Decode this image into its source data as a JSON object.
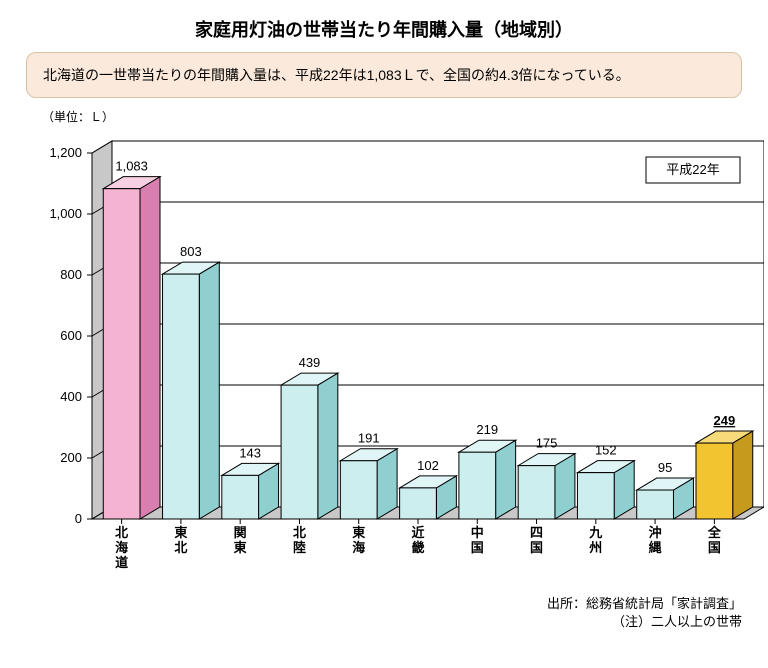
{
  "title": "家庭用灯油の世帯当たり年間購入量（地域別）",
  "callout": "北海道の一世帯当たりの年間購入量は、平成22年は1,083Ｌで、全国の約4.3倍になっている。",
  "unit_label": "（単位：Ｌ）",
  "legend_label": "平成22年",
  "source_line1": "出所：総務省統計局「家計調査」",
  "source_line2": "（注）二人以上の世帯",
  "chart": {
    "type": "bar",
    "categories": [
      "北海道",
      "東北",
      "関東",
      "北陸",
      "東海",
      "近畿",
      "中国",
      "四国",
      "九州",
      "沖縄",
      "全国"
    ],
    "values": [
      1083,
      803,
      143,
      439,
      191,
      102,
      219,
      175,
      152,
      95,
      249
    ],
    "bar_fill": [
      "#f4b3d0",
      "#cceeef",
      "#cceeef",
      "#cceeef",
      "#cceeef",
      "#cceeef",
      "#cceeef",
      "#cceeef",
      "#cceeef",
      "#cceeef",
      "#f2c430"
    ],
    "bar_side": [
      "#d97fb0",
      "#8fcfd0",
      "#8fcfd0",
      "#8fcfd0",
      "#8fcfd0",
      "#8fcfd0",
      "#8fcfd0",
      "#8fcfd0",
      "#8fcfd0",
      "#8fcfd0",
      "#c69a1c"
    ],
    "bar_top": [
      "#f8d0e3",
      "#e0f6f6",
      "#e0f6f6",
      "#e0f6f6",
      "#e0f6f6",
      "#e0f6f6",
      "#e0f6f6",
      "#e0f6f6",
      "#e0f6f6",
      "#e0f6f6",
      "#f7db7a"
    ],
    "ylim": [
      0,
      1200
    ],
    "ytick_step": 200,
    "axis_color": "#000000",
    "grid_color": "#000000",
    "floor_color": "#c8c8c8",
    "backwall_color": "#c8c8c8",
    "plot_bg": "#ffffff",
    "label_fontsize": 13,
    "tick_fontsize": 13,
    "bar_width": 0.62,
    "legend_border": "#000000",
    "legend_bg": "#ffffff",
    "underline_last": true
  }
}
